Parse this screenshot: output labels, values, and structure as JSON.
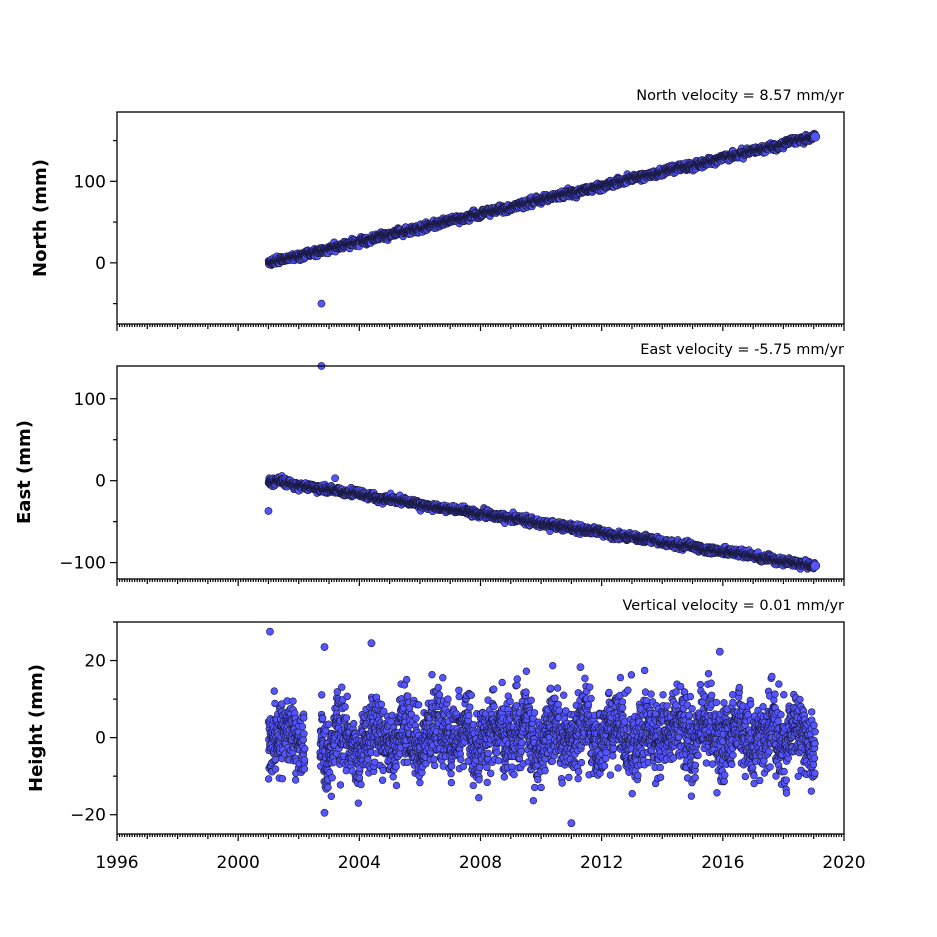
{
  "chart_data": [
    {
      "type": "scatter",
      "title": "North velocity = 8.57 mm/yr",
      "ylabel": "North (mm)",
      "xlabel": "",
      "xlim": [
        1996,
        2020
      ],
      "ylim": [
        -75,
        185
      ],
      "yticks": [
        0,
        100
      ],
      "ytick_labels": [
        "0",
        "100"
      ],
      "grid": false,
      "legend": "none",
      "start": 2001.0,
      "end": 2019.05,
      "velocity": 8.57,
      "start_value": 0,
      "noise": 2.0,
      "outliers": [
        {
          "x": 2002.75,
          "y": -50
        }
      ]
    },
    {
      "type": "scatter",
      "title": "East velocity = -5.75 mm/yr",
      "ylabel": "East (mm)",
      "xlabel": "",
      "xlim": [
        1996,
        2020
      ],
      "ylim": [
        -120,
        140
      ],
      "yticks": [
        -100,
        0,
        100
      ],
      "ytick_labels": [
        "−100",
        "0",
        "100"
      ],
      "grid": false,
      "legend": "none",
      "start": 2001.0,
      "end": 2019.05,
      "velocity": -5.75,
      "start_value": 0,
      "noise": 2.0,
      "outliers": [
        {
          "x": 2001.0,
          "y": -37
        },
        {
          "x": 2002.75,
          "y": 140
        },
        {
          "x": 2003.2,
          "y": 3
        }
      ]
    },
    {
      "type": "scatter",
      "title": "Vertical velocity = 0.01 mm/yr",
      "ylabel": "Height (mm)",
      "xlabel": "",
      "xlim": [
        1996,
        2020
      ],
      "ylim": [
        -25,
        30
      ],
      "yticks": [
        -20,
        0,
        20
      ],
      "ytick_labels": [
        "−20",
        "0",
        "20"
      ],
      "xticks": [
        1996,
        2000,
        2004,
        2008,
        2012,
        2016,
        2020
      ],
      "xtick_labels": [
        "1996",
        "2000",
        "2004",
        "2008",
        "2012",
        "2016",
        "2020"
      ],
      "grid": false,
      "legend": "none",
      "start": 2001.0,
      "end": 2019.05,
      "velocity": 0.01,
      "start_value": 0,
      "noise": 5.0,
      "gaps": [
        [
          2002.2,
          2002.7
        ]
      ],
      "outliers": [
        {
          "x": 2001.05,
          "y": 27.5
        },
        {
          "x": 2002.85,
          "y": 23.5
        },
        {
          "x": 2004.4,
          "y": 24.5
        },
        {
          "x": 2011.3,
          "y": 18.3
        },
        {
          "x": 2015.9,
          "y": 22.3
        },
        {
          "x": 2011.0,
          "y": -22.2
        },
        {
          "x": 2002.85,
          "y": -19.5
        }
      ]
    }
  ]
}
